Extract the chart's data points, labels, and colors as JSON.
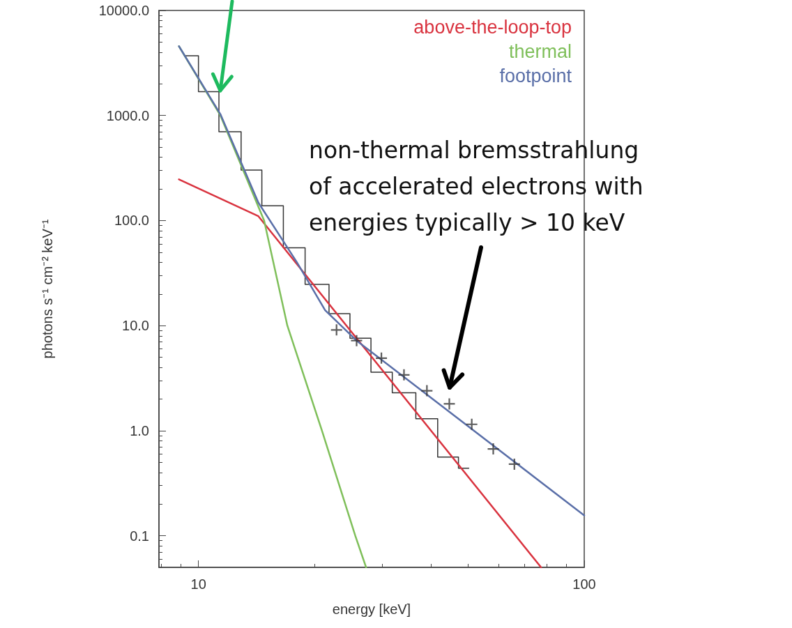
{
  "chart_data": {
    "type": "line",
    "xlabel": "energy [keV]",
    "ylabel": "photons s⁻¹ cm⁻² keV⁻¹",
    "log": "xy",
    "xlim": [
      7.9,
      100
    ],
    "xticks": [
      10,
      100
    ],
    "ylim": [
      0.05,
      10000
    ],
    "yticks": [
      {
        "value": 0.1,
        "label": "0.1"
      },
      {
        "value": 1,
        "label": "1.0"
      },
      {
        "value": 10,
        "label": "10.0"
      },
      {
        "value": 100,
        "label": "100.0"
      },
      {
        "value": 1000,
        "label": "1000.0"
      },
      {
        "value": 10000,
        "label": "10000.0"
      }
    ],
    "grid": false,
    "legend": "top right",
    "line_style": "solid",
    "annotations": [
      "non-thermal bremsstrahlung\nof accelerated electrons with\nenergies typically > 10 keV"
    ],
    "series": [
      {
        "type": "step",
        "color": "#333333",
        "x": [
          9.24,
          10.0,
          11.3,
          12.9,
          14.6,
          16.6,
          18.9,
          21.8,
          24.7,
          28.0,
          31.8,
          36.6,
          41.7,
          47.2,
          50.2
        ],
        "values": [
          3700,
          1690,
          700,
          302,
          138,
          55,
          24.7,
          13,
          7.6,
          3.6,
          2.3,
          1.3,
          0.56,
          0.44,
          0.44
        ]
      },
      {
        "type": "scatter",
        "marker": "cross",
        "color": "#333333",
        "x": [
          22.8,
          25.7,
          29.8,
          34.1,
          39.1,
          44.7,
          51.1,
          58.1,
          65.9
        ],
        "values": [
          9.1,
          7.2,
          4.9,
          3.4,
          2.4,
          1.8,
          1.15,
          0.67,
          0.48
        ]
      },
      {
        "name": "above-the-loop-top",
        "color": "#d9333f",
        "x": [
          8.9,
          14.3,
          77.3
        ],
        "values": [
          247,
          110,
          0.05
        ]
      },
      {
        "name": "thermal",
        "color": "#7fbf5a",
        "x": [
          8.9,
          11.4,
          14.8,
          17.0,
          20.9,
          25.5,
          27.2
        ],
        "values": [
          4570,
          1000,
          100,
          10,
          1,
          0.1,
          0.05
        ]
      },
      {
        "name": "footpoint",
        "color": "#5a6fa8",
        "x": [
          8.9,
          11.4,
          14.3,
          18.0,
          21.3,
          25.7,
          100
        ],
        "values": [
          4570,
          1030,
          148,
          40,
          14,
          7.2,
          0.156
        ]
      }
    ]
  }
}
